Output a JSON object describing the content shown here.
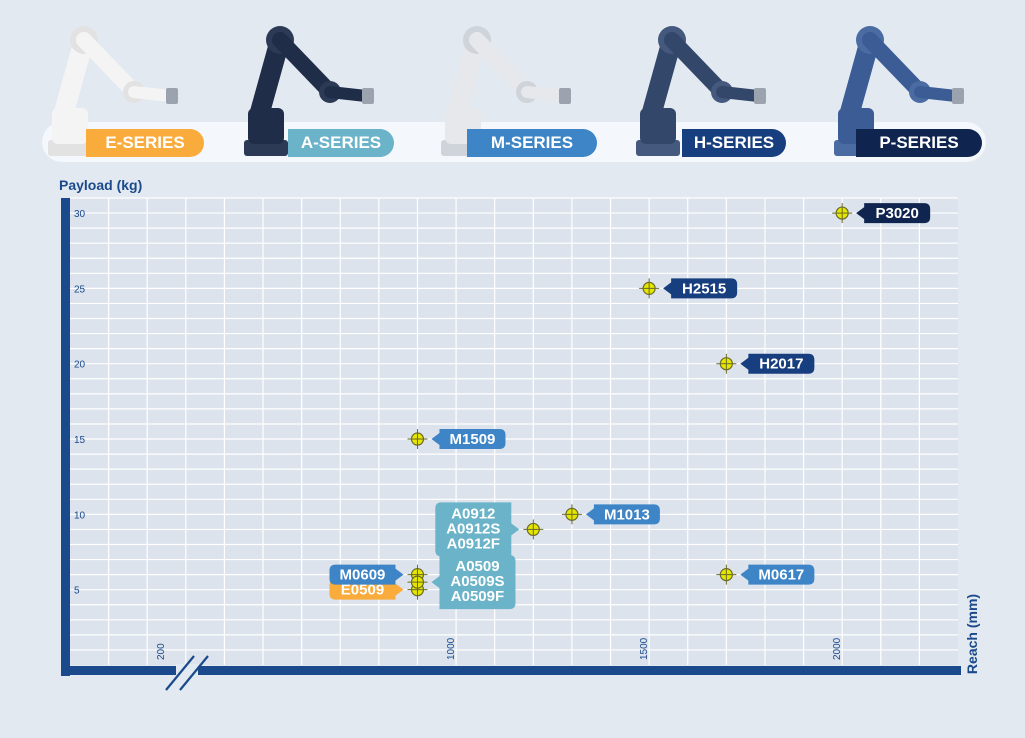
{
  "series": [
    {
      "label": "E-SERIES",
      "color": "#f9ab3c",
      "arm": "#f4f4f4",
      "joint": "#e2e2e2",
      "icon": "robot-arm-icon"
    },
    {
      "label": "A-SERIES",
      "color": "#6bb3c8",
      "arm": "#1f2d48",
      "joint": "#2c3a55",
      "icon": "robot-arm-icon"
    },
    {
      "label": "M-SERIES",
      "color": "#3d85c6",
      "arm": "#e6e8ec",
      "joint": "#cfd3da",
      "icon": "robot-arm-icon"
    },
    {
      "label": "H-SERIES",
      "color": "#173e7e",
      "arm": "#33476b",
      "joint": "#44597d",
      "icon": "robot-arm-icon"
    },
    {
      "label": "P-SERIES",
      "color": "#0f2550",
      "arm": "#3b5c94",
      "joint": "#4a6ca3",
      "icon": "robot-arm-icon"
    }
  ],
  "chart_data": {
    "type": "scatter",
    "ylabel": "Payload (kg)",
    "xlabel": "Reach (mm)",
    "xlim": [
      0,
      2300
    ],
    "ylim": [
      0,
      31
    ],
    "x_ticks": [
      200,
      1000,
      1500,
      2000
    ],
    "y_ticks": [
      5,
      10,
      15,
      20,
      25,
      30
    ],
    "x_axis_break": true,
    "grid": true,
    "points": [
      {
        "x": 900,
        "y": 5,
        "labels": [
          "E0509"
        ],
        "series": "E-SERIES",
        "side": "left",
        "color": "#f9ab3c"
      },
      {
        "x": 900,
        "y": 6,
        "labels": [
          "M0609"
        ],
        "series": "M-SERIES",
        "side": "left",
        "color": "#3d85c6"
      },
      {
        "x": 900,
        "y": 5.5,
        "labels": [
          "A0509",
          "A0509S",
          "A0509F"
        ],
        "series": "A-SERIES",
        "side": "right",
        "color": "#6bb3c8"
      },
      {
        "x": 900,
        "y": 15,
        "labels": [
          "M1509"
        ],
        "series": "M-SERIES",
        "side": "right",
        "color": "#3d85c6"
      },
      {
        "x": 1200,
        "y": 9,
        "labels": [
          "A0912",
          "A0912S",
          "A0912F"
        ],
        "series": "A-SERIES",
        "side": "left",
        "color": "#6bb3c8"
      },
      {
        "x": 1300,
        "y": 10,
        "labels": [
          "M1013"
        ],
        "series": "M-SERIES",
        "side": "right",
        "color": "#3d85c6"
      },
      {
        "x": 1500,
        "y": 25,
        "labels": [
          "H2515"
        ],
        "series": "H-SERIES",
        "side": "right",
        "color": "#173e7e"
      },
      {
        "x": 1700,
        "y": 20,
        "labels": [
          "H2017"
        ],
        "series": "H-SERIES",
        "side": "right",
        "color": "#173e7e"
      },
      {
        "x": 1700,
        "y": 6,
        "labels": [
          "M0617"
        ],
        "series": "M-SERIES",
        "side": "right",
        "color": "#3d85c6"
      },
      {
        "x": 2000,
        "y": 30,
        "labels": [
          "P3020"
        ],
        "series": "P-SERIES",
        "side": "right",
        "color": "#0f2550"
      }
    ],
    "marker_color": "#e4e600",
    "axis_color": "#1a4a8c",
    "plot_bg": "#dce3ec"
  }
}
